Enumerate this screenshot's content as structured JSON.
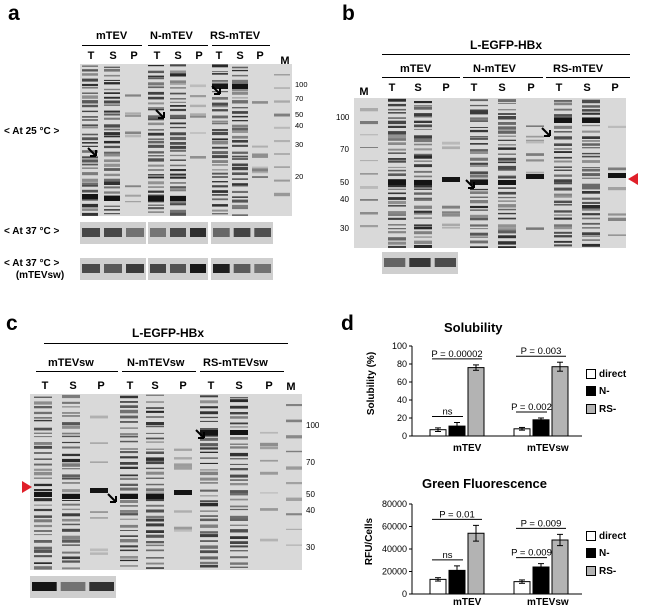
{
  "panels": {
    "a": {
      "label": "a",
      "groups": [
        "mTEV",
        "N-mTEV",
        "RS-mTEV"
      ],
      "lanes": [
        "T",
        "S",
        "P",
        "T",
        "S",
        "P",
        "T",
        "S",
        "P",
        "M"
      ],
      "markers": [
        "100",
        "70",
        "50",
        "40",
        "30",
        "20"
      ],
      "conditions": [
        "< At 25 °C >",
        "< At 37 °C >",
        "< At 37 °C >",
        "(mTEVsw)"
      ]
    },
    "b": {
      "label": "b",
      "construct": "L-EGFP-HBx",
      "groups": [
        "mTEV",
        "N-mTEV",
        "RS-mTEV"
      ],
      "lanes": [
        "M",
        "T",
        "S",
        "P",
        "T",
        "S",
        "P",
        "T",
        "S",
        "P"
      ],
      "markers": [
        "100",
        "70",
        "50",
        "40",
        "30"
      ]
    },
    "c": {
      "label": "c",
      "construct": "L-EGFP-HBx",
      "groups": [
        "mTEVsw",
        "N-mTEVsw",
        "RS-mTEVsw"
      ],
      "lanes": [
        "T",
        "S",
        "P",
        "T",
        "S",
        "P",
        "T",
        "S",
        "P",
        "M"
      ],
      "markers": [
        "100",
        "70",
        "50",
        "40",
        "30"
      ]
    },
    "d": {
      "label": "d"
    }
  },
  "colors": {
    "arrowhead_red": "#e0202a",
    "direct": "#ffffff",
    "n_series": "#000000",
    "rs_series": "#b3b3b3"
  },
  "chart_data": [
    {
      "type": "bar",
      "title": "Solubility",
      "ylabel": "Solubility (%)",
      "categories": [
        "mTEV",
        "mTEVsw"
      ],
      "ylim": [
        0,
        100
      ],
      "yticks": [
        "0",
        "20",
        "40",
        "60",
        "80",
        "100"
      ],
      "series": [
        {
          "name": "direct",
          "values": [
            7,
            8
          ],
          "errors": [
            2,
            1.5
          ]
        },
        {
          "name": "N-",
          "values": [
            11,
            18
          ],
          "errors": [
            4,
            2
          ]
        },
        {
          "name": "RS-",
          "values": [
            76,
            77
          ],
          "errors": [
            3,
            5
          ]
        }
      ],
      "annotations": [
        "P = 0.00002",
        "ns",
        "P = 0.003",
        "P = 0.002"
      ],
      "legend": "right"
    },
    {
      "type": "bar",
      "title": "Green Fluorescence",
      "ylabel": "RFU/Cells",
      "categories": [
        "mTEV",
        "mTEVsw"
      ],
      "ylim": [
        0,
        80000
      ],
      "yticks": [
        "0",
        "20000",
        "40000",
        "60000",
        "80000"
      ],
      "series": [
        {
          "name": "direct",
          "values": [
            13000,
            11000
          ],
          "errors": [
            1500,
            1500
          ]
        },
        {
          "name": "N-",
          "values": [
            21000,
            24000
          ],
          "errors": [
            4000,
            3000
          ]
        },
        {
          "name": "RS-",
          "values": [
            54000,
            48000
          ],
          "errors": [
            7000,
            5000
          ]
        }
      ],
      "annotations": [
        "P = 0.01",
        "ns",
        "P = 0.009",
        "P = 0.009"
      ],
      "legend": "right"
    }
  ]
}
